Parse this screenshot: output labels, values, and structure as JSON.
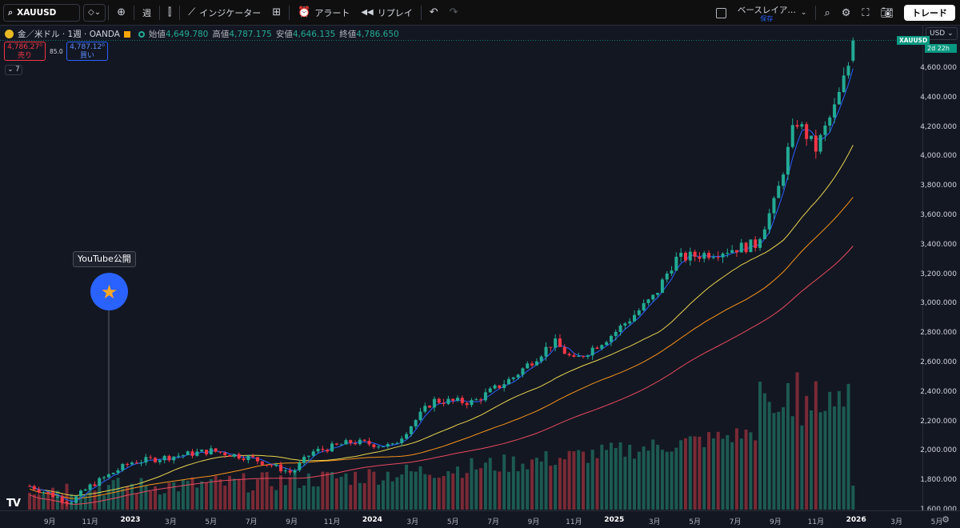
{
  "toolbar": {
    "symbol": "XAUUSD",
    "interval": "週",
    "indicators_label": "インジケーター",
    "alert_label": "アラート",
    "replay_label": "リプレイ",
    "layout_name": "ベースレイア…",
    "layout_sub": "保存",
    "trade_label": "トレード"
  },
  "legend": {
    "title": "金／米ドル · 1週 · OANDA",
    "open_label": "始値",
    "open": "4,649.780",
    "high_label": "高値",
    "high": "4,787.175",
    "low_label": "安値",
    "low": "4,646.135",
    "close_label": "終値",
    "close": "4,786.650"
  },
  "order": {
    "sell_price": "4,786.27⁰",
    "sell_label": "売り",
    "spread": "85.0",
    "buy_price": "4,787.12⁰",
    "buy_label": "買い",
    "collapse_count": "7"
  },
  "price_axis": {
    "currency": "USD",
    "symbol_tag": "XAUUSD",
    "countdown": "2d 22h",
    "labels": [
      "4,600.000",
      "4,400.000",
      "4,200.000",
      "4,000.000",
      "3,800.000",
      "3,600.000",
      "3,400.000",
      "3,200.000",
      "3,000.000",
      "2,800.000",
      "2,600.000",
      "2,400.000",
      "2,200.000",
      "2,000.000",
      "1,800.000",
      "1,600.000"
    ]
  },
  "time_axis": {
    "labels": [
      {
        "text": "9月",
        "bold": false
      },
      {
        "text": "11月",
        "bold": false
      },
      {
        "text": "2023",
        "bold": true
      },
      {
        "text": "3月",
        "bold": false
      },
      {
        "text": "5月",
        "bold": false
      },
      {
        "text": "7月",
        "bold": false
      },
      {
        "text": "9月",
        "bold": false
      },
      {
        "text": "11月",
        "bold": false
      },
      {
        "text": "2024",
        "bold": true
      },
      {
        "text": "3月",
        "bold": false
      },
      {
        "text": "5月",
        "bold": false
      },
      {
        "text": "7月",
        "bold": false
      },
      {
        "text": "9月",
        "bold": false
      },
      {
        "text": "11月",
        "bold": false
      },
      {
        "text": "2025",
        "bold": true
      },
      {
        "text": "3月",
        "bold": false
      },
      {
        "text": "5月",
        "bold": false
      },
      {
        "text": "7月",
        "bold": false
      },
      {
        "text": "9月",
        "bold": false
      },
      {
        "text": "11月",
        "bold": false
      },
      {
        "text": "2026",
        "bold": true
      },
      {
        "text": "3月",
        "bold": false
      },
      {
        "text": "5月",
        "bold": false
      }
    ]
  },
  "marker": {
    "label": "YouTube公開"
  },
  "colors": {
    "up": "#22ab94",
    "down": "#f23645",
    "ma_fast": "#2962ff",
    "ma_mid": "#e8d44d",
    "ma_slow": "#f7931a",
    "ma_long": "#e84a5f"
  },
  "chart_data": {
    "type": "candlestick",
    "title": "金／米ドル · 1週 · OANDA",
    "ylabel": "USD",
    "ylim": [
      1600,
      4800
    ],
    "x_range": [
      "2022-08",
      "2026-05"
    ],
    "anchor_closes": [
      {
        "t": "2022-08",
        "v": 1760
      },
      {
        "t": "2022-10",
        "v": 1650
      },
      {
        "t": "2022-11",
        "v": 1760
      },
      {
        "t": "2023-01",
        "v": 1920
      },
      {
        "t": "2023-05",
        "v": 2000
      },
      {
        "t": "2023-07",
        "v": 1950
      },
      {
        "t": "2023-09",
        "v": 1850
      },
      {
        "t": "2023-10",
        "v": 1990
      },
      {
        "t": "2023-12",
        "v": 2060
      },
      {
        "t": "2024-02",
        "v": 2030
      },
      {
        "t": "2024-04",
        "v": 2340
      },
      {
        "t": "2024-06",
        "v": 2330
      },
      {
        "t": "2024-08",
        "v": 2500
      },
      {
        "t": "2024-10",
        "v": 2740
      },
      {
        "t": "2024-11",
        "v": 2610
      },
      {
        "t": "2025-01",
        "v": 2800
      },
      {
        "t": "2025-03",
        "v": 3050
      },
      {
        "t": "2025-04",
        "v": 3300
      },
      {
        "t": "2025-06",
        "v": 3350
      },
      {
        "t": "2025-08",
        "v": 3400
      },
      {
        "t": "2025-09",
        "v": 3700
      },
      {
        "t": "2025-10",
        "v": 4250
      },
      {
        "t": "2025-11",
        "v": 4050
      },
      {
        "t": "2025-12",
        "v": 4350
      },
      {
        "t": "2026-01",
        "v": 4786.65
      }
    ],
    "moving_averages": [
      "fast (blue)",
      "mid (yellow)",
      "slow (orange)",
      "long (red)"
    ],
    "volume": "weekly volume histogram at bottom, rising into 2025–2026"
  }
}
